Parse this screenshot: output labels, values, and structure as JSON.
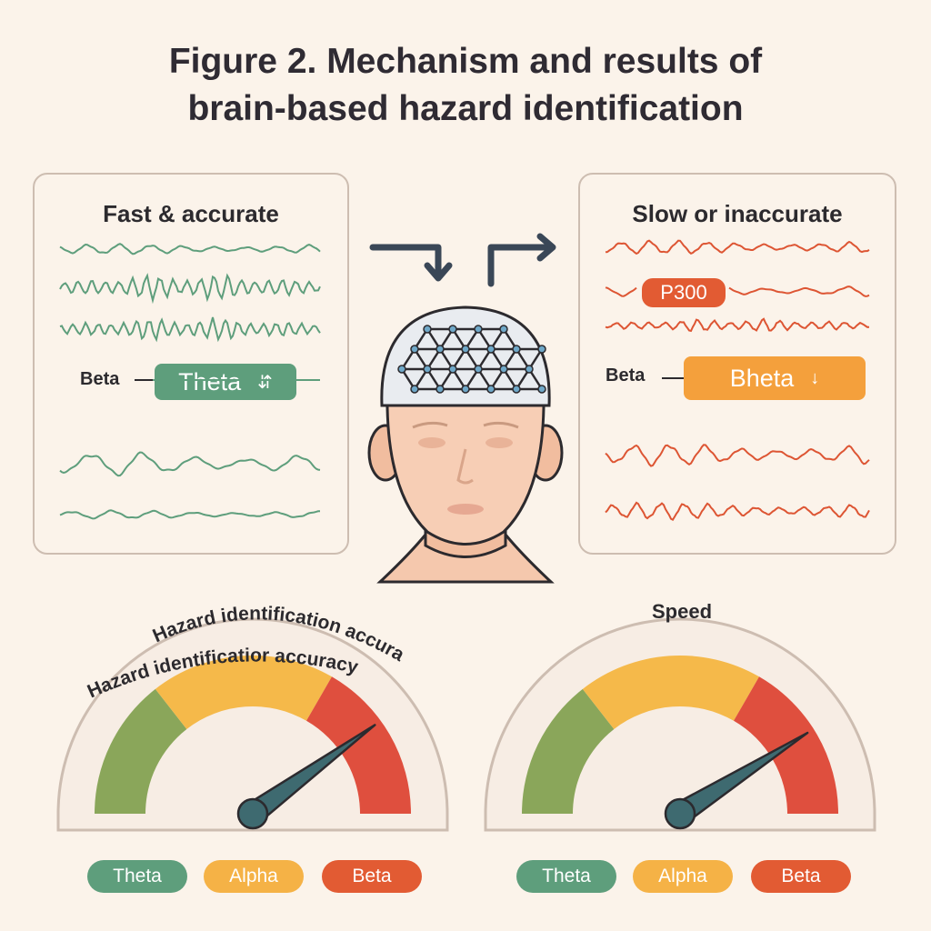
{
  "title": {
    "line1": "Figure 2. Mechanism and results of",
    "line2": "brain-based hazard identification"
  },
  "left_panel": {
    "title": "Fast & accurate",
    "band_label": "Beta",
    "pill_label": "Theta",
    "pill_icon": "up-down-arrow-icon",
    "wave_color": "#5e9e7c",
    "pill_color": "#5e9e7c"
  },
  "right_panel": {
    "title": "Slow or inaccurate",
    "p300_label": "P300",
    "band_label": "Beta",
    "pill_label": "Bheta",
    "pill_icon": "down-arrow-icon",
    "wave_color": "#dd5533",
    "pill_color": "#f4a03c"
  },
  "head": {
    "cap_icon": "eeg-electrode-cap-icon"
  },
  "gauges": [
    {
      "title": "Hazard identification accuracy",
      "title_echo": "Hazard identificatior accuracy",
      "level": 0.8
    },
    {
      "title": "Speed",
      "level": 0.82
    }
  ],
  "legend": [
    {
      "label": "Theta",
      "color": "#5e9e7c"
    },
    {
      "label": "Alpha",
      "color": "#f5b246"
    },
    {
      "label": "Beta",
      "color": "#e25b33"
    }
  ],
  "colors": {
    "gauge_green": "#8aa65a",
    "gauge_yellow": "#f5b94a",
    "gauge_red": "#df4f3e",
    "needle": "#3e6a70"
  }
}
